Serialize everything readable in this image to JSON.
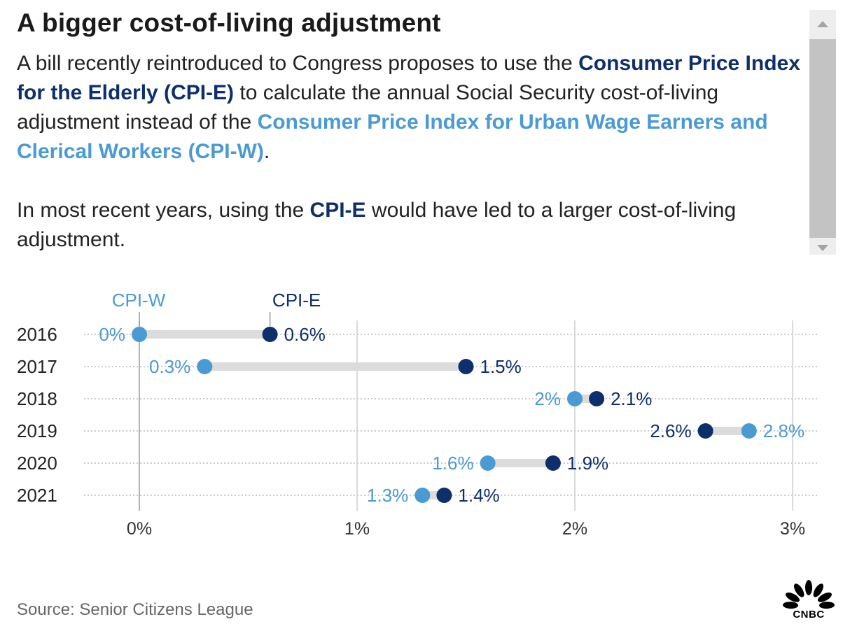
{
  "title": "A bigger cost-of-living adjustment",
  "description": {
    "p1": [
      {
        "text": "A bill recently reintroduced to Congress proposes to use the ",
        "style": "plain"
      },
      {
        "text": "Consumer Price Index for the Elderly (CPI-E)",
        "style": "cpi-e"
      },
      {
        "text": " to calculate the annual Social Security cost-of-living adjustment instead of the ",
        "style": "plain"
      },
      {
        "text": "Consumer Price Index for Urban Wage Earners and Clerical Workers (CPI-W)",
        "style": "cpi-w"
      },
      {
        "text": ".",
        "style": "plain"
      }
    ],
    "p2": [
      {
        "text": "In most recent years, using the ",
        "style": "plain"
      },
      {
        "text": "CPI-E",
        "style": "cpi-e"
      },
      {
        "text": " would have led to a larger cost-of-living adjustment.",
        "style": "plain"
      }
    ]
  },
  "chart_data": {
    "type": "dot-range",
    "categories": [
      "2016",
      "2017",
      "2018",
      "2019",
      "2020",
      "2021"
    ],
    "series": [
      {
        "name": "CPI-W",
        "color": "#4a9ad4",
        "values": [
          0,
          0.3,
          2,
          2.8,
          1.6,
          1.3
        ],
        "labels": [
          "0%",
          "0.3%",
          "2%",
          "2.8%",
          "1.6%",
          "1.3%"
        ]
      },
      {
        "name": "CPI-E",
        "color": "#0d2f6b",
        "values": [
          0.6,
          1.5,
          2.1,
          2.6,
          1.9,
          1.4
        ],
        "labels": [
          "0.6%",
          "1.5%",
          "2.1%",
          "2.6%",
          "1.9%",
          "1.4%"
        ]
      }
    ],
    "xlim": [
      0,
      3
    ],
    "x_ticks": [
      0,
      1,
      2,
      3
    ],
    "x_tick_labels": [
      "0%",
      "1%",
      "2%",
      "3%"
    ],
    "legend": "annotated above first row",
    "grid": true
  },
  "source": "Source: Senior Citizens League",
  "logo": {
    "text": "CNBC",
    "icon": "nbc-peacock-icon"
  }
}
